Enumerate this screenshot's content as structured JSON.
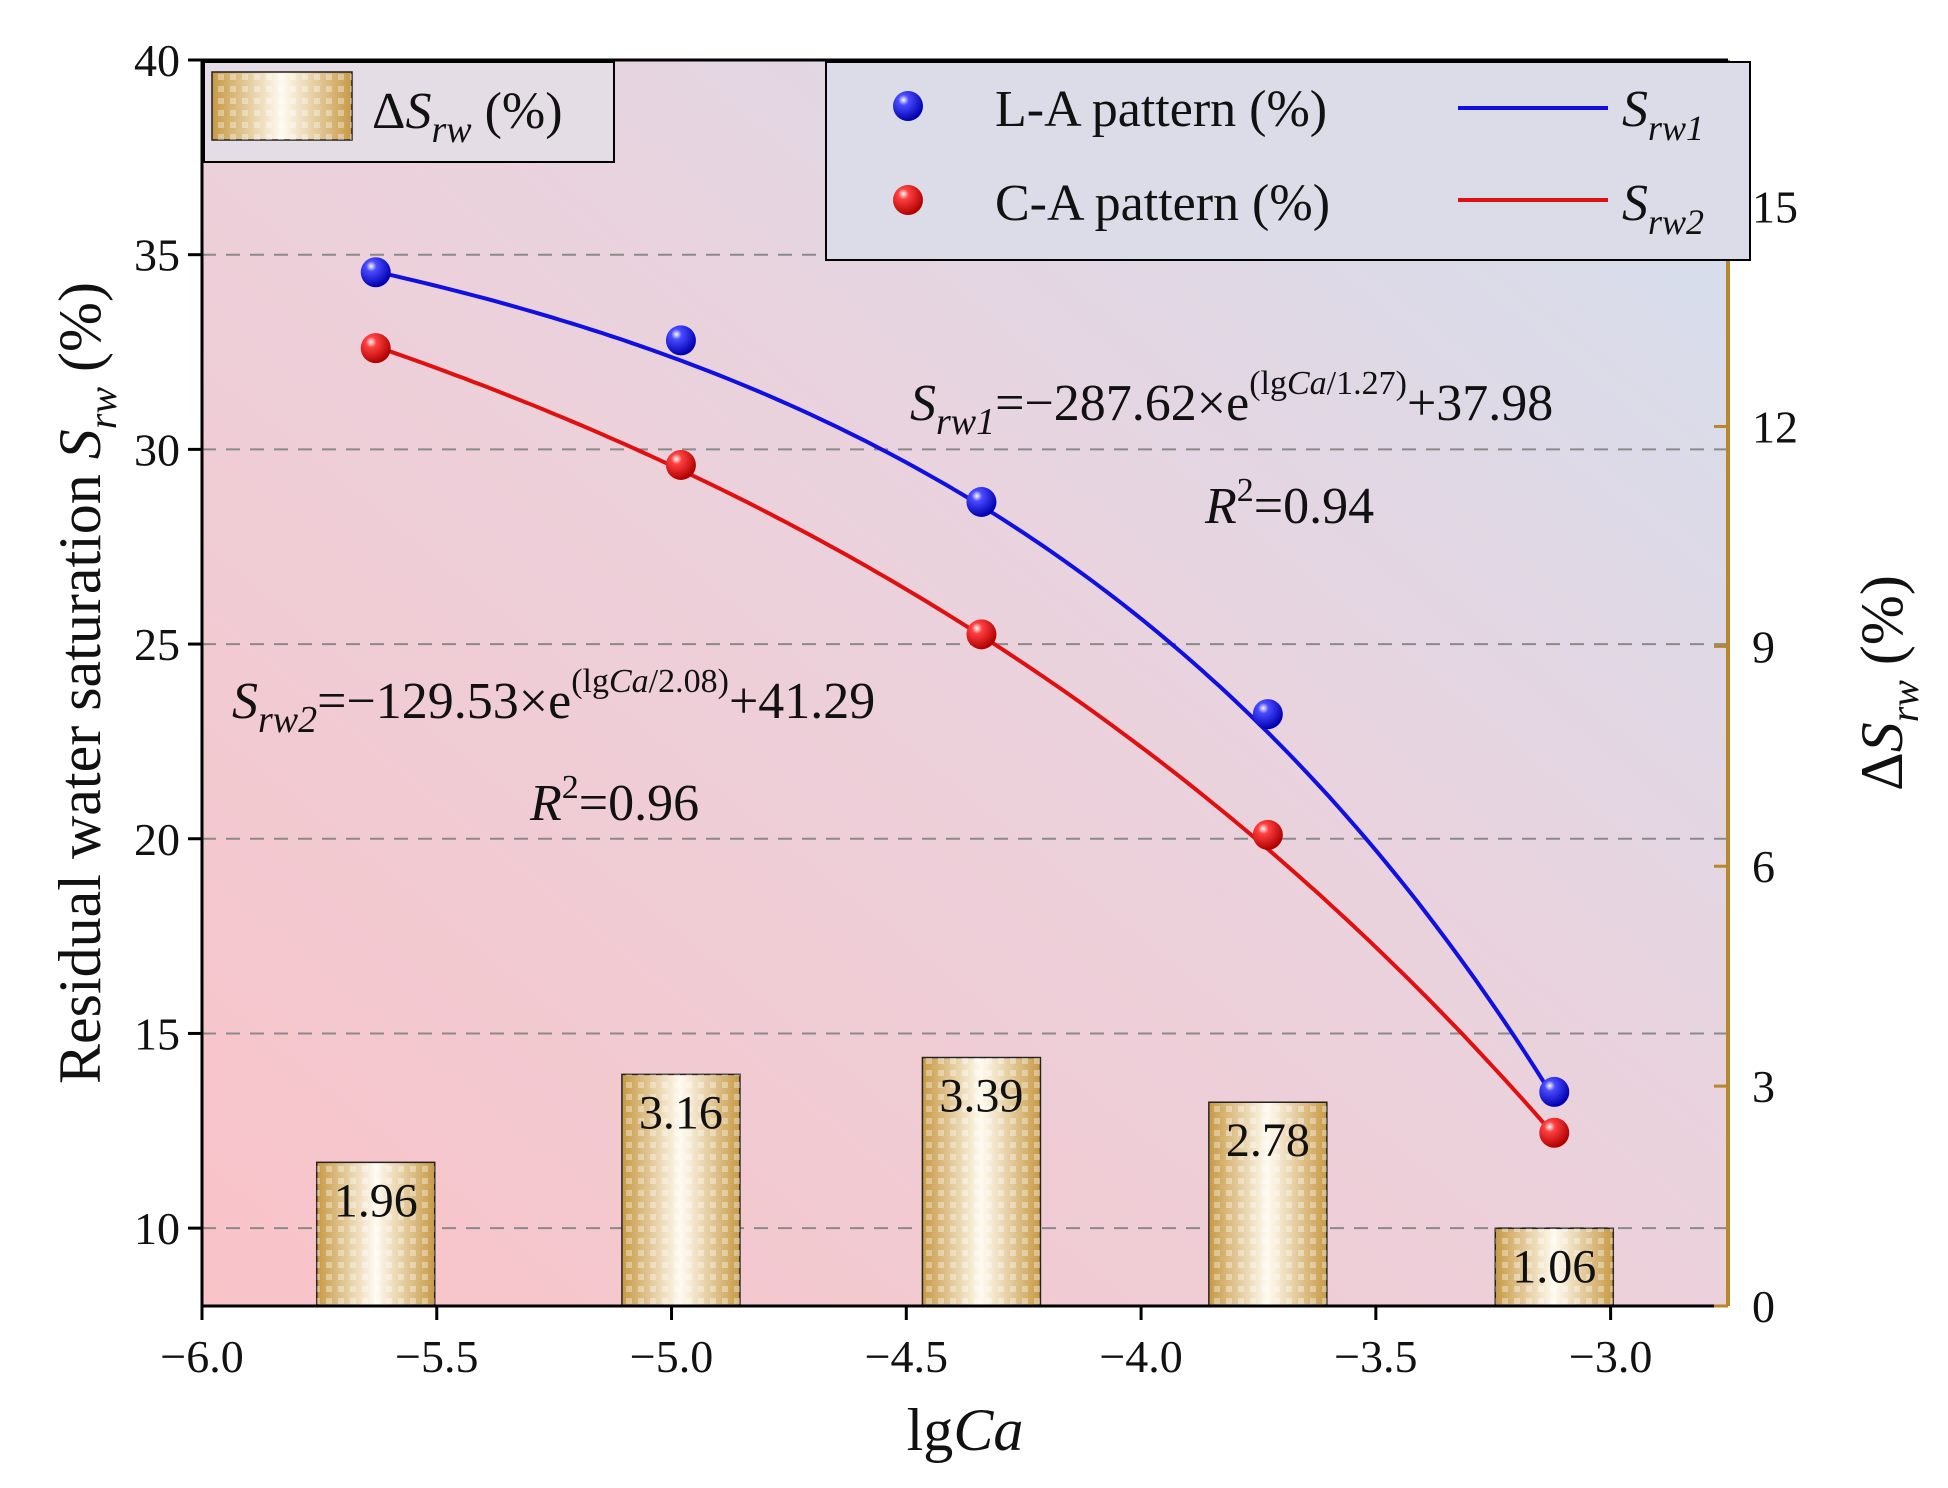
{
  "chart_data": {
    "type": "bar+scatter+line",
    "title": "",
    "xlabel_prefix": "lg",
    "xlabel_italic": "Ca",
    "xlim": [
      -6.0,
      -2.75
    ],
    "xticks": [
      -6.0,
      -5.5,
      -5.0,
      -4.5,
      -4.0,
      -3.5,
      -3.0
    ],
    "xtick_labels": [
      "−6.0",
      "−5.5",
      "−5.0",
      "−4.5",
      "−4.0",
      "−3.5",
      "−3.0"
    ],
    "ylabel_text": "Residual water saturation ",
    "ylabel_var": "S",
    "ylabel_sub": "rw",
    "ylabel_unit": " (%)",
    "ylim": [
      8,
      40
    ],
    "yticks": [
      10,
      15,
      20,
      25,
      30,
      35,
      40
    ],
    "y2label_prefix": "Δ",
    "y2label_var": "S",
    "y2label_sub": "rw",
    "y2label_unit": " (%)",
    "y2lim": [
      0,
      17
    ],
    "y2ticks": [
      0,
      3,
      6,
      9,
      12,
      15
    ],
    "grid": "horizontal-dashed",
    "x": [
      -5.63,
      -4.98,
      -4.34,
      -3.73,
      -3.12
    ],
    "series": [
      {
        "name": "L-A pattern (%)",
        "kind": "scatter",
        "axis": "left",
        "color": "#1010e0",
        "values": [
          34.55,
          32.8,
          28.65,
          23.2,
          13.5
        ]
      },
      {
        "name": "C-A pattern (%)",
        "kind": "scatter",
        "axis": "left",
        "color": "#e01010",
        "values": [
          32.6,
          29.6,
          25.25,
          20.1,
          12.45
        ]
      },
      {
        "name": "ΔSrw (%)",
        "kind": "bar",
        "axis": "right",
        "color": "#c8a050",
        "values": [
          1.96,
          3.16,
          3.39,
          2.78,
          1.06
        ],
        "labels": [
          "1.96",
          "3.16",
          "3.39",
          "2.78",
          "1.06"
        ]
      }
    ],
    "fits": [
      {
        "name": "Srw1",
        "var": "S",
        "sub": "rw1",
        "color": "#1010e0",
        "a": -287.62,
        "b": 1.27,
        "c": 37.98,
        "x_range": [
          -5.63,
          -3.12
        ],
        "eq_rest": "=−287.62×e",
        "eq_exp_pre": "(lg",
        "eq_exp_it": "Ca",
        "eq_exp_post": "/1.27)",
        "eq_tail": "+37.98",
        "r2_var": "R",
        "r2_sup": "2",
        "r2_rest": "=0.94"
      },
      {
        "name": "Srw2",
        "var": "S",
        "sub": "rw2",
        "color": "#e01010",
        "a": -129.53,
        "b": 2.08,
        "c": 41.29,
        "x_range": [
          -5.63,
          -3.12
        ],
        "eq_rest": "=−129.53×e",
        "eq_exp_pre": "(lg",
        "eq_exp_it": "Ca",
        "eq_exp_post": "/2.08)",
        "eq_tail": "+41.29",
        "r2_var": "R",
        "r2_sup": "2",
        "r2_rest": "=0.96"
      }
    ],
    "legend": {
      "bar": {
        "prefix": "Δ",
        "var": "S",
        "sub": "rw",
        "unit": " (%)",
        "placement": "top-left"
      },
      "points": [
        {
          "label": "L-A pattern (%)",
          "color": "#1010e0"
        },
        {
          "label": "C-A pattern (%)",
          "color": "#e01010"
        }
      ],
      "lines": [
        {
          "var": "S",
          "sub": "rw1",
          "color": "#1010e0"
        },
        {
          "var": "S",
          "sub": "rw2",
          "color": "#e01010"
        }
      ],
      "placement": "top-right"
    },
    "colors": {
      "background_bottom_left": "#f7c6cc",
      "background_top_right": "#d4e0ef",
      "right_axis": "#b8862b",
      "bar_fill": "#c8a050"
    }
  }
}
